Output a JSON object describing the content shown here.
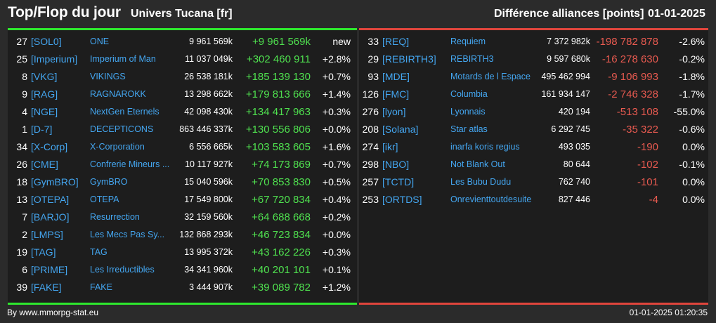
{
  "header": {
    "title": "Top/Flop du jour",
    "universe": "Univers Tucana [fr]",
    "diff_label": "Différence alliances [points]",
    "date": "01-01-2025"
  },
  "colors": {
    "top": "#2ee82e",
    "flop": "#e0453c",
    "tag": "#44a6f0"
  },
  "top": [
    {
      "rank": "27",
      "tag": "[SOL0]",
      "name": "ONE",
      "points": "9 961 569k",
      "delta": "+9 961 569k",
      "pct": "new"
    },
    {
      "rank": "25",
      "tag": "[Imperium]",
      "name": "Imperium of Man",
      "points": "11 037 049k",
      "delta": "+302 460 911",
      "pct": "+2.8%"
    },
    {
      "rank": "8",
      "tag": "[VKG]",
      "name": "VIKINGS",
      "points": "26 538 181k",
      "delta": "+185 139 130",
      "pct": "+0.7%"
    },
    {
      "rank": "9",
      "tag": "[RAG]",
      "name": "RAGNAROKK",
      "points": "13 298 662k",
      "delta": "+179 813 666",
      "pct": "+1.4%"
    },
    {
      "rank": "4",
      "tag": "[NGE]",
      "name": "NextGen Eternels",
      "points": "42 098 430k",
      "delta": "+134 417 963",
      "pct": "+0.3%"
    },
    {
      "rank": "1",
      "tag": "[D-7]",
      "name": "DECEPTICONS",
      "points": "863 446 337k",
      "delta": "+130 556 806",
      "pct": "+0.0%"
    },
    {
      "rank": "34",
      "tag": "[X-Corp]",
      "name": "X-Corporation",
      "points": "6 556 665k",
      "delta": "+103 583 605",
      "pct": "+1.6%"
    },
    {
      "rank": "26",
      "tag": "[CME]",
      "name": "Confrerie Mineurs ...",
      "points": "10 117 927k",
      "delta": "+74 173 869",
      "pct": "+0.7%"
    },
    {
      "rank": "18",
      "tag": "[GymBRO]",
      "name": "GymBRO",
      "points": "15 040 596k",
      "delta": "+70 853 830",
      "pct": "+0.5%"
    },
    {
      "rank": "13",
      "tag": "[OTEPA]",
      "name": "OTEPA",
      "points": "17 549 800k",
      "delta": "+67 720 834",
      "pct": "+0.4%"
    },
    {
      "rank": "7",
      "tag": "[BARJO]",
      "name": "Resurrection",
      "points": "32 159 560k",
      "delta": "+64 688 668",
      "pct": "+0.2%"
    },
    {
      "rank": "2",
      "tag": "[LMPS]",
      "name": "Les Mecs Pas Sy...",
      "points": "132 868 293k",
      "delta": "+46 723 834",
      "pct": "+0.0%"
    },
    {
      "rank": "19",
      "tag": "[TAG]",
      "name": "TAG",
      "points": "13 995 372k",
      "delta": "+43 162 226",
      "pct": "+0.3%"
    },
    {
      "rank": "6",
      "tag": "[PRIME]",
      "name": "Les Irreductibles",
      "points": "34 341 960k",
      "delta": "+40 201 101",
      "pct": "+0.1%"
    },
    {
      "rank": "39",
      "tag": "[FAKE]",
      "name": "FAKE",
      "points": "3 444 907k",
      "delta": "+39 089 782",
      "pct": "+1.2%"
    }
  ],
  "flop": [
    {
      "rank": "33",
      "tag": "[REQ]",
      "name": "Requiem",
      "points": "7 372 982k",
      "delta": "-198 782 878",
      "pct": "-2.6%"
    },
    {
      "rank": "29",
      "tag": "[REBIRTH3]",
      "name": "REBIRTH3",
      "points": "9 597 680k",
      "delta": "-16 278 630",
      "pct": "-0.2%"
    },
    {
      "rank": "93",
      "tag": "[MDE]",
      "name": "Motards de l Espace",
      "points": "495 462 994",
      "delta": "-9 106 993",
      "pct": "-1.8%"
    },
    {
      "rank": "126",
      "tag": "[FMC]",
      "name": "Columbia",
      "points": "161 934 147",
      "delta": "-2 746 328",
      "pct": "-1.7%"
    },
    {
      "rank": "276",
      "tag": "[lyon]",
      "name": "Lyonnais",
      "points": "420 194",
      "delta": "-513 108",
      "pct": "-55.0%"
    },
    {
      "rank": "208",
      "tag": "[Solana]",
      "name": "Star atlas",
      "points": "6 292 745",
      "delta": "-35 322",
      "pct": "-0.6%"
    },
    {
      "rank": "274",
      "tag": "[ikr]",
      "name": "inarfa koris regius",
      "points": "493 035",
      "delta": "-190",
      "pct": "0.0%"
    },
    {
      "rank": "298",
      "tag": "[NBO]",
      "name": "Not Blank Out",
      "points": "80 644",
      "delta": "-102",
      "pct": "-0.1%"
    },
    {
      "rank": "257",
      "tag": "[TCTD]",
      "name": "Les Bubu Dudu",
      "points": "762 740",
      "delta": "-101",
      "pct": "0.0%"
    },
    {
      "rank": "253",
      "tag": "[ORTDS]",
      "name": "Onrevienttoutdesuite",
      "points": "827 446",
      "delta": "-4",
      "pct": "0.0%"
    }
  ],
  "footer": {
    "credit": "By www.mmorpg-stat.eu",
    "timestamp": "01-01-2025 01:20:35"
  }
}
